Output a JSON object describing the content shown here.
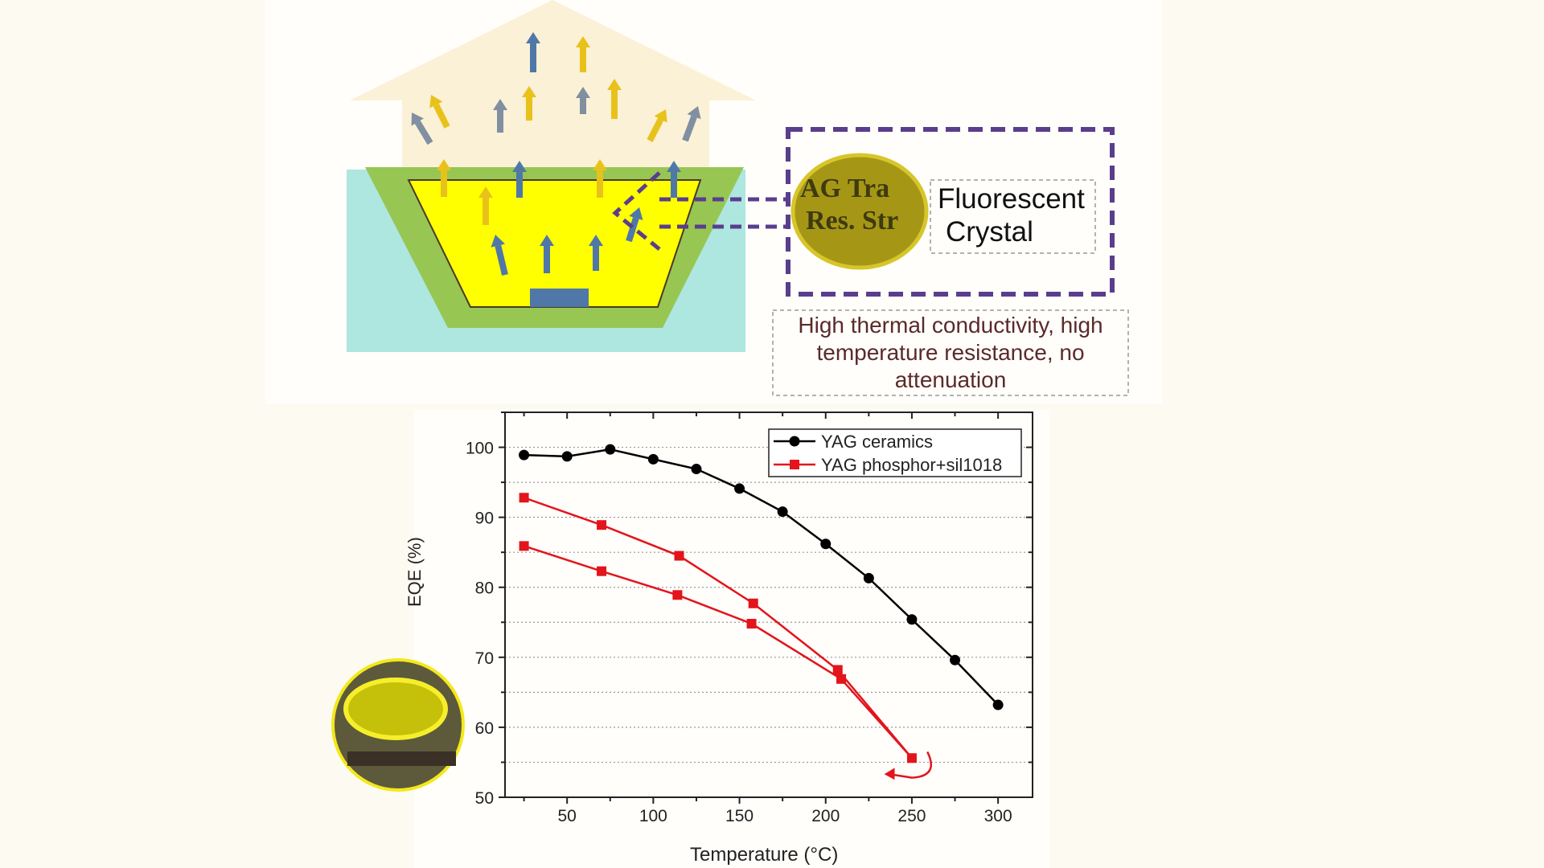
{
  "diagram": {
    "crystal_label_line1": "Fluorescent",
    "crystal_label_line2": "Crystal",
    "crystal_logo_line1": "AG Tra",
    "crystal_logo_line2": "Res. Str",
    "property_text": "High thermal conductivity, high temperature resistance, no attenuation",
    "colors": {
      "cyan": "#aee6e0",
      "green": "#97c653",
      "yellow": "#ffff00",
      "chip": "#4f78a8",
      "light_beam": "#fbf1d6",
      "purple": "#5a3e8c"
    }
  },
  "chart_data": {
    "type": "line",
    "xlabel": "Temperature (°C)",
    "ylabel": "EQE (%)",
    "xlim": [
      14,
      320
    ],
    "ylim": [
      50,
      105
    ],
    "xticks": [
      50,
      100,
      150,
      200,
      250,
      300
    ],
    "yticks": [
      50,
      60,
      70,
      80,
      90,
      100
    ],
    "grid": "horizontal dotted",
    "legend_position": "top-right",
    "series": [
      {
        "name": "YAG ceramics",
        "color": "#000000",
        "marker": "circle",
        "x": [
          25,
          50,
          75,
          100,
          125,
          150,
          175,
          200,
          225,
          250,
          275,
          300
        ],
        "y": [
          98.9,
          98.7,
          99.7,
          98.3,
          96.9,
          94.1,
          90.8,
          86.2,
          81.3,
          75.4,
          69.6,
          63.2
        ]
      },
      {
        "name": "YAG phosphor+sil1018",
        "color": "#e3141c",
        "marker": "square",
        "x": [
          25,
          70,
          115,
          158,
          207,
          250,
          209,
          157,
          114,
          70,
          25
        ],
        "y": [
          92.8,
          88.9,
          84.5,
          77.7,
          68.2,
          55.6,
          66.9,
          74.8,
          78.9,
          82.3,
          85.9
        ]
      }
    ]
  }
}
